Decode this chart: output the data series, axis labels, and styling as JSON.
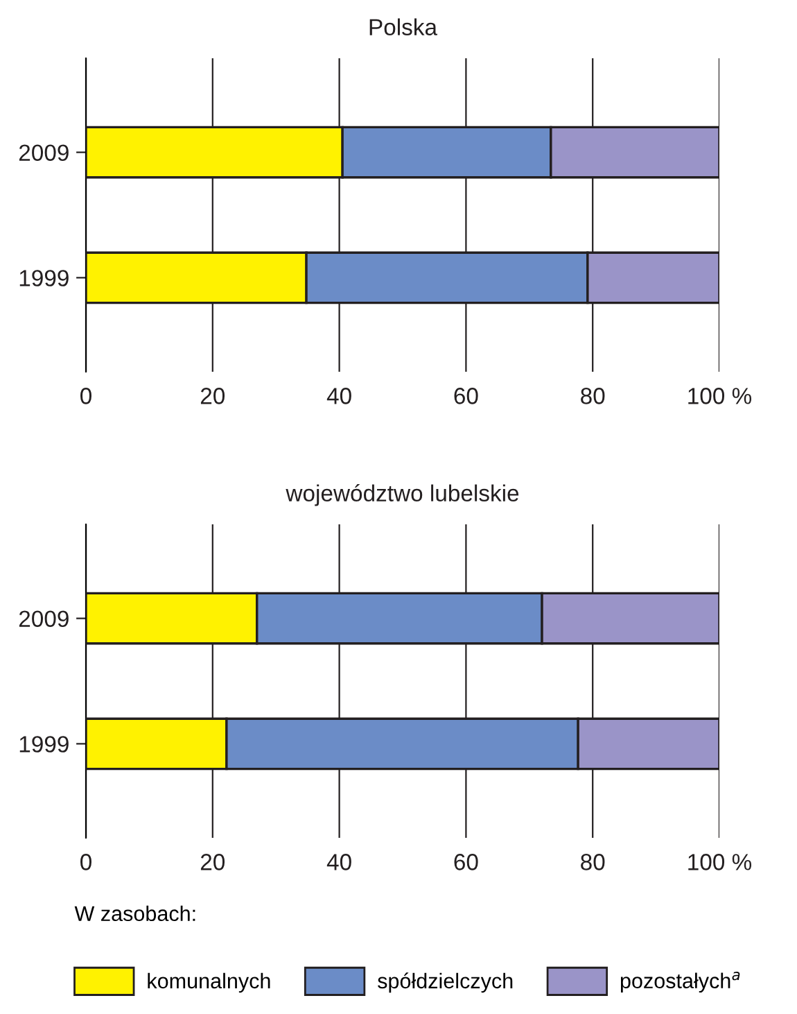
{
  "chart_data": [
    {
      "type": "bar",
      "title": "Polska",
      "orientation": "horizontal",
      "stacked": true,
      "categories": [
        "2009",
        "1999"
      ],
      "series": [
        {
          "name": "komunalnych",
          "color": "#fff200",
          "values": [
            40.5,
            34.8
          ]
        },
        {
          "name": "spółdzielczych",
          "color": "#6b8cc7",
          "values": [
            32.9,
            44.4
          ]
        },
        {
          "name": "pozostałych$^{a}$",
          "color": "#9a94c8",
          "values": [
            26.6,
            20.8
          ]
        }
      ],
      "xlim": [
        0,
        100
      ],
      "xticks": [
        0,
        20,
        40,
        60,
        80,
        {
          "value": 100,
          "label": "100 %"
        }
      ],
      "grid": "x",
      "legend": "bottom",
      "legend_title": "W zasobach:"
    },
    {
      "type": "bar",
      "title": "województwo lubelskie",
      "orientation": "horizontal",
      "stacked": true,
      "categories": [
        "2009",
        "1999"
      ],
      "series": [
        {
          "color": "#fff200",
          "values": [
            27.0,
            22.2
          ]
        },
        {
          "color": "#6b8cc7",
          "values": [
            45.0,
            55.5
          ]
        },
        {
          "color": "#9a94c8",
          "values": [
            28.0,
            22.3
          ]
        }
      ],
      "xlim": [
        0,
        100
      ],
      "xticks": [
        0,
        20,
        40,
        60,
        80,
        {
          "value": 100,
          "label": "100 %"
        }
      ],
      "grid": "x"
    }
  ]
}
